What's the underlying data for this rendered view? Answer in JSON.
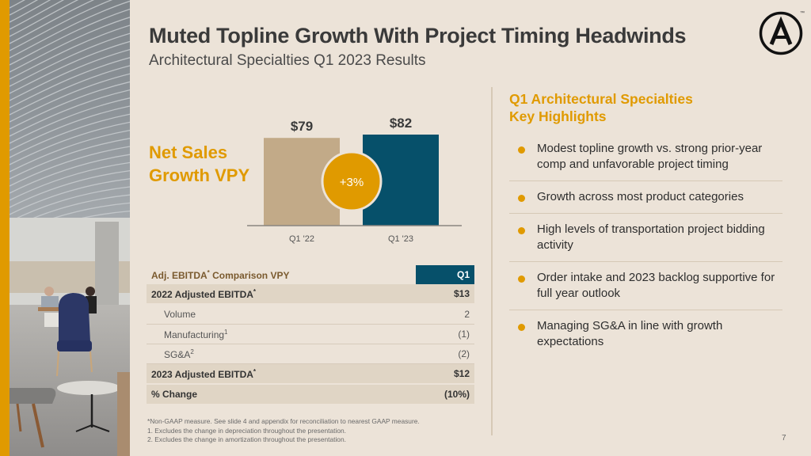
{
  "slide": {
    "title": "Muted Topline Growth With Project Timing Headwinds",
    "subtitle": "Architectural Specialties Q1 2023 Results",
    "page_number": "7",
    "logo_icon": "arcosa-a-logo",
    "logo_tm": "™",
    "colors": {
      "accent": "#e09a00",
      "navy": "#06506a",
      "tan": "#c2aa88",
      "background": "#ece3d8"
    }
  },
  "net_sales": {
    "title_line1": "Net Sales",
    "title_line2": "Growth VPY"
  },
  "chart_data": {
    "type": "bar",
    "title": "Net Sales Growth VPY",
    "categories": [
      "Q1 '22",
      "Q1 '23"
    ],
    "values": [
      79,
      82
    ],
    "value_labels": [
      "$79",
      "$82"
    ],
    "bar_colors": [
      "#c2aa88",
      "#06506a"
    ],
    "annotation": "+3%",
    "xlabel": "",
    "ylabel": "",
    "ylim": [
      0,
      82
    ],
    "grid": false
  },
  "ebitda_table": {
    "header_label": "Adj. EBITDA",
    "header_sup": "*",
    "header_label_rest": " Comparison VPY",
    "header_col": "Q1",
    "rows": [
      {
        "label": "2022 Adjusted EBITDA",
        "sup": "*",
        "value": "$13",
        "style": "bold"
      },
      {
        "label": "Volume",
        "sup": "",
        "value": "2",
        "style": "sub"
      },
      {
        "label": "Manufacturing",
        "sup": "1",
        "value": "(1)",
        "style": "sub"
      },
      {
        "label": "SG&A",
        "sup": "2",
        "value": "(2)",
        "style": "sub"
      },
      {
        "label": "2023 Adjusted EBITDA",
        "sup": "*",
        "value": "$12",
        "style": "bold"
      },
      {
        "label": "% Change",
        "sup": "",
        "value": "(10%)",
        "style": "bold"
      }
    ]
  },
  "footnotes": [
    "*Non-GAAP measure. See slide 4 and appendix for reconciliation to nearest GAAP measure.",
    "1.  Excludes the change in depreciation throughout the presentation.",
    "2.  Excludes the change in amortization throughout the presentation."
  ],
  "highlights": {
    "title_line1": "Q1 Architectural Specialties",
    "title_line2": "Key Highlights",
    "items": [
      "Modest topline growth vs. strong prior-year comp and unfavorable project timing",
      "Growth across most product categories",
      "High levels of transportation project bidding activity",
      "Order intake and 2023 backlog supportive for full year outlook",
      "Managing SG&A in line with growth expectations"
    ]
  }
}
